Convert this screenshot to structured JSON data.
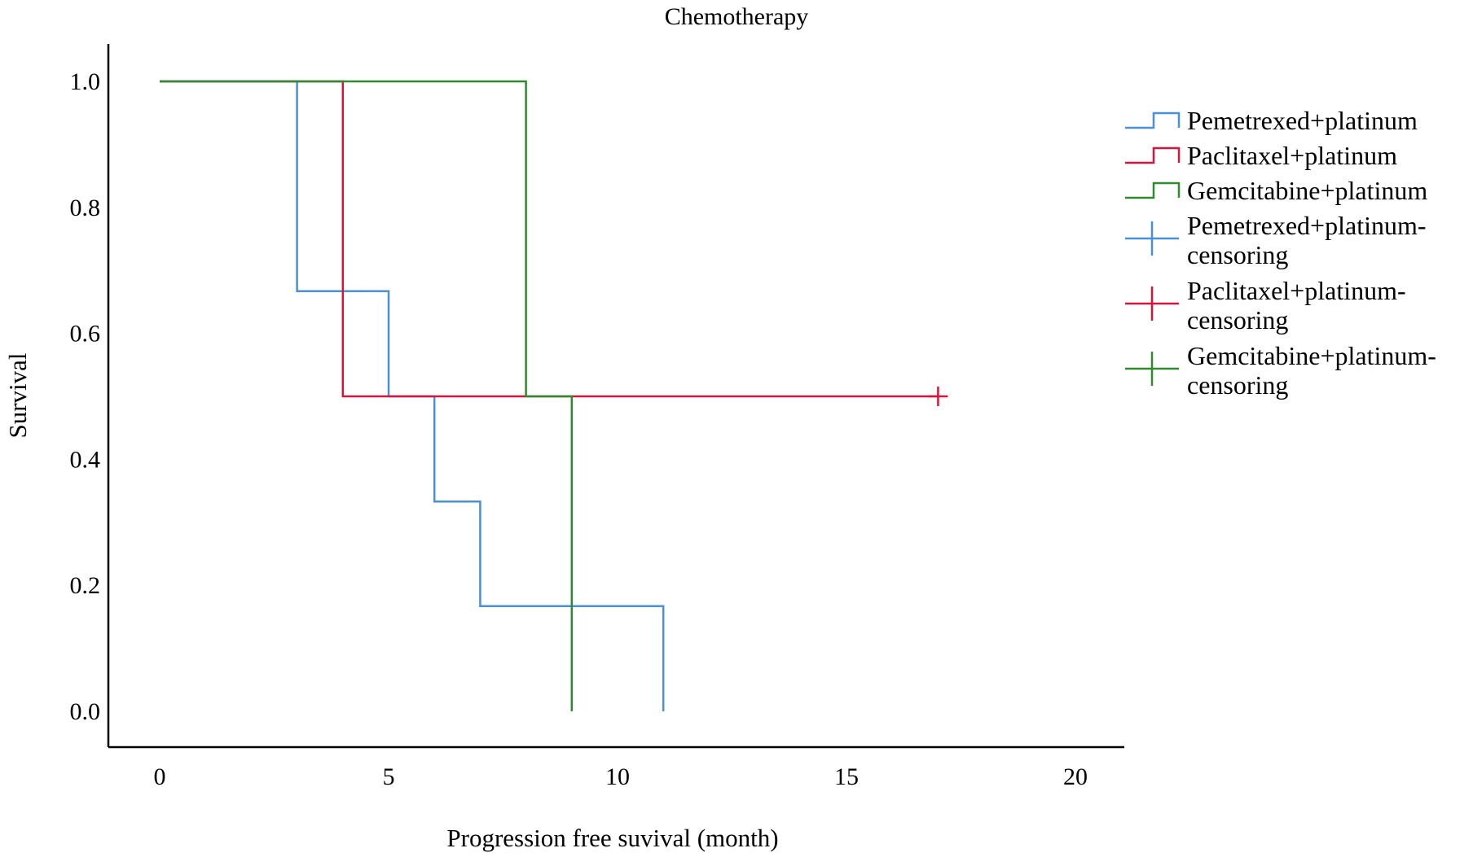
{
  "chart_data": {
    "type": "line",
    "subtype": "kaplan-meier-step",
    "title": "Chemotherapy",
    "xlabel": "Progression free suvival (month)",
    "ylabel": "Survival",
    "xlim": [
      -1.1,
      21.1
    ],
    "ylim": [
      -0.05,
      1.06
    ],
    "x_ticks": [
      0,
      5,
      10,
      15,
      20
    ],
    "x_tick_labels": [
      "0",
      "5",
      "10",
      "15",
      "20"
    ],
    "y_ticks": [
      0,
      0.2,
      0.4,
      0.6,
      0.8,
      1.0
    ],
    "y_tick_labels": [
      "0.0",
      "0.2",
      "0.4",
      "0.6",
      "0.8",
      "1.0"
    ],
    "grid": false,
    "legend_position": "right",
    "series": [
      {
        "name": "Pemetrexed+platinum",
        "color": "#4a90d9",
        "steps": [
          [
            0,
            1.0
          ],
          [
            3,
            0.667
          ],
          [
            5,
            0.5
          ],
          [
            6,
            0.333
          ],
          [
            7,
            0.167
          ],
          [
            11,
            0.0
          ]
        ],
        "end_x": 11
      },
      {
        "name": "Paclitaxel+platinum",
        "color": "#d8143a",
        "steps": [
          [
            0,
            1.0
          ],
          [
            4,
            0.5
          ]
        ],
        "end_x": 17
      },
      {
        "name": "Gemcitabine+platinum",
        "color": "#2e8b2e",
        "steps": [
          [
            0,
            1.0
          ],
          [
            8,
            0.5
          ],
          [
            9,
            0.0
          ]
        ],
        "end_x": 9
      }
    ],
    "censoring": [
      {
        "series": "Paclitaxel+platinum",
        "x": 17,
        "y": 0.5
      }
    ],
    "legend": [
      {
        "kind": "step",
        "color": "#4a90d9",
        "lines": [
          "Pemetrexed+platinum"
        ]
      },
      {
        "kind": "step",
        "color": "#d8143a",
        "lines": [
          "Paclitaxel+platinum"
        ]
      },
      {
        "kind": "step",
        "color": "#2e8b2e",
        "lines": [
          "Gemcitabine+platinum"
        ]
      },
      {
        "kind": "censor",
        "color": "#4a90d9",
        "lines": [
          "Pemetrexed+platinum-",
          "censoring"
        ]
      },
      {
        "kind": "censor",
        "color": "#d8143a",
        "lines": [
          "Paclitaxel+platinum-",
          "censoring"
        ]
      },
      {
        "kind": "censor",
        "color": "#2e8b2e",
        "lines": [
          "Gemcitabine+platinum-",
          "censoring"
        ]
      }
    ]
  }
}
